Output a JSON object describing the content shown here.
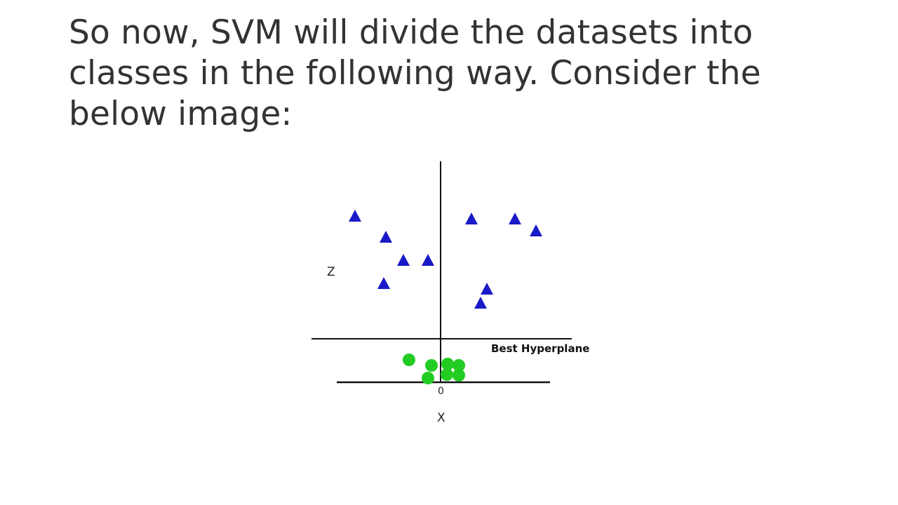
{
  "slide": {
    "text": "So now, SVM will divide the datasets into classes in the following way. Consider the below image:"
  },
  "figure": {
    "z_label": "Z",
    "x_label": "X",
    "origin_label": "0",
    "hyperplane_label": "Best Hyperplane",
    "colors": {
      "triangle": "#1a1ac8",
      "circle": "#22cc22",
      "line": "#111111"
    }
  }
}
